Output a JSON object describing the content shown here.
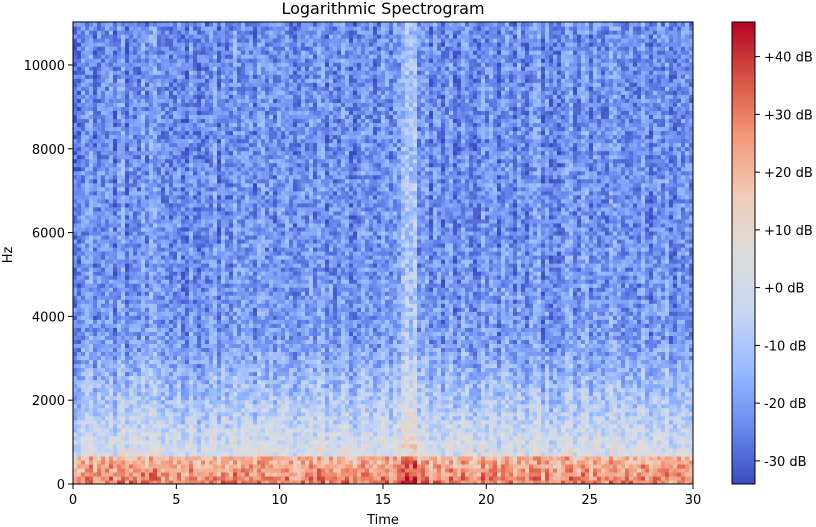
{
  "chart_data": {
    "type": "heatmap",
    "title": "Logarithmic Spectrogram",
    "xlabel": "Time",
    "ylabel": "Hz",
    "xlim": [
      0,
      30
    ],
    "ylim": [
      0,
      11025
    ],
    "x_ticks": [
      0,
      5,
      10,
      15,
      20,
      25,
      30
    ],
    "x_tick_labels": [
      "0",
      "5",
      "10",
      "15",
      "20",
      "25",
      "30"
    ],
    "y_ticks": [
      0,
      2000,
      4000,
      6000,
      8000,
      10000
    ],
    "y_tick_labels": [
      "0",
      "2000",
      "4000",
      "6000",
      "8000",
      "10000"
    ],
    "colorbar": {
      "range": [
        -34,
        46
      ],
      "ticks": [
        -30,
        -20,
        -10,
        0,
        10,
        20,
        30,
        40
      ],
      "tick_labels": [
        "-30 dB",
        "-20 dB",
        "-10 dB",
        "+0 dB",
        "+10 dB",
        "+20 dB",
        "+30 dB",
        "+40 dB"
      ],
      "colormap": "coolwarm",
      "colormap_stops": [
        "#3b4cc0",
        "#6a8bef",
        "#9abbff",
        "#c9d7f0",
        "#dddddd",
        "#f2cbb7",
        "#f49a7b",
        "#d75445",
        "#b40426"
      ]
    },
    "grid": false,
    "features": {
      "low_freq_energy_hz": [
        0,
        3500
      ],
      "bright_vertical_band_time": 16.3
    }
  }
}
